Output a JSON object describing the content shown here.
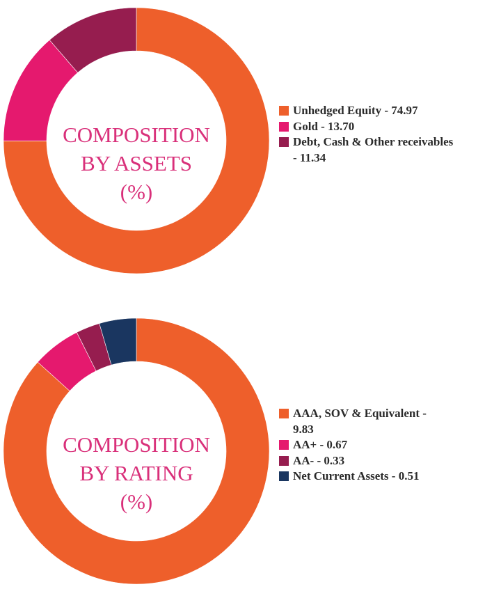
{
  "colors": {
    "orange": "#ee5f2b",
    "pink": "#e5196e",
    "plum": "#961d4f",
    "navy": "#1a3660",
    "title_pink": "#d9307a"
  },
  "chart_data": [
    {
      "type": "pie",
      "style": "donut",
      "center_title_lines": [
        "COMPOSITION",
        "BY ASSETS",
        "(%)"
      ],
      "slices": [
        {
          "label": "Unhedged Equity - 74.97",
          "legend_lines": [
            "Unhedged Equity - 74.97"
          ],
          "value": 74.97,
          "color": "#ee5f2b"
        },
        {
          "label": "Gold - 13.70",
          "legend_lines": [
            "Gold - 13.70"
          ],
          "value": 13.7,
          "color": "#e5196e"
        },
        {
          "label": "Debt, Cash & Other receivables - 11.34",
          "legend_lines": [
            "Debt, Cash & Other receivables",
            "- 11.34"
          ],
          "value": 11.34,
          "color": "#961d4f"
        }
      ],
      "legend_placement": "right"
    },
    {
      "type": "pie",
      "style": "donut",
      "center_title_lines": [
        "COMPOSITION",
        "BY RATING",
        "(%)"
      ],
      "slices": [
        {
          "label": "AAA, SOV & Equivalent - 9.83",
          "legend_lines": [
            "AAA, SOV & Equivalent -",
            "9.83"
          ],
          "value": 9.83,
          "color": "#ee5f2b"
        },
        {
          "label": "AA+ - 0.67",
          "legend_lines": [
            "AA+ - 0.67"
          ],
          "value": 0.67,
          "color": "#e5196e"
        },
        {
          "label": "AA- - 0.33",
          "legend_lines": [
            "AA- - 0.33"
          ],
          "value": 0.33,
          "color": "#961d4f"
        },
        {
          "label": "Net Current Assets - 0.51",
          "legend_lines": [
            "Net Current Assets - 0.51"
          ],
          "value": 0.51,
          "color": "#1a3660"
        }
      ],
      "legend_placement": "right"
    }
  ]
}
